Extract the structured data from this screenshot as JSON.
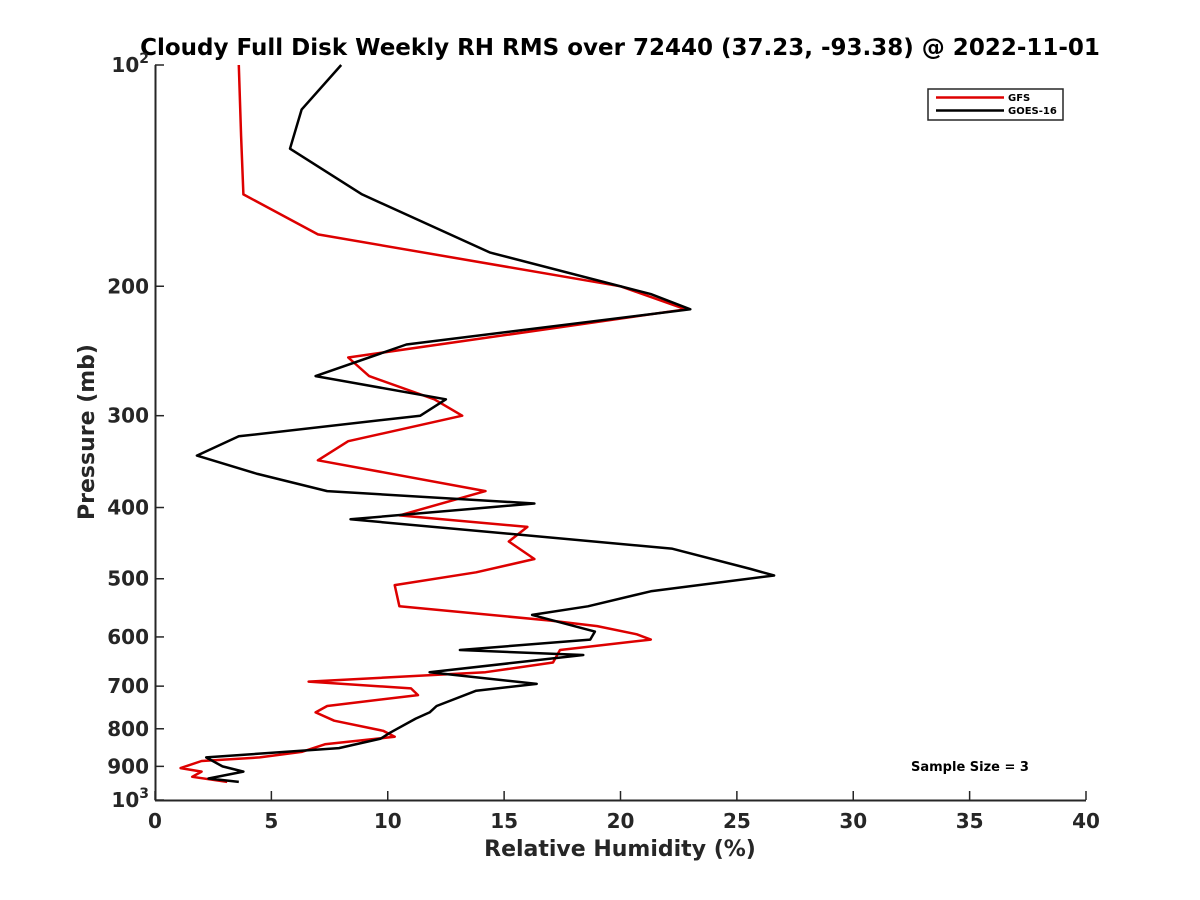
{
  "chart_data": {
    "type": "line",
    "title": "Cloudy Full Disk Weekly RH RMS over 72440 (37.23, -93.38) @ 2022-11-01",
    "xlabel": "Relative Humidity (%)",
    "ylabel": "Pressure (mb)",
    "xlim": [
      0,
      40
    ],
    "ylim": [
      100,
      1000
    ],
    "y_scale": "log",
    "y_reversed": true,
    "x_ticks": [
      "0",
      "5",
      "10",
      "15",
      "20",
      "25",
      "30",
      "35",
      "40"
    ],
    "y_ticks": [
      {
        "value": 100,
        "base": "10",
        "exp": "2"
      },
      {
        "value": 200,
        "label": "200"
      },
      {
        "value": 300,
        "label": "300"
      },
      {
        "value": 400,
        "label": "400"
      },
      {
        "value": 500,
        "label": "500"
      },
      {
        "value": 600,
        "label": "600"
      },
      {
        "value": 700,
        "label": "700"
      },
      {
        "value": 800,
        "label": "800"
      },
      {
        "value": 900,
        "label": "900"
      },
      {
        "value": 1000,
        "base": "10",
        "exp": "3"
      }
    ],
    "grid": false,
    "legend_position": "top-right",
    "annotation": "Sample Size = 3",
    "series": [
      {
        "name": "GFS",
        "color": "#dd0000",
        "points": [
          [
            3.6,
            100
          ],
          [
            3.7,
            125
          ],
          [
            3.8,
            150
          ],
          [
            7.0,
            170
          ],
          [
            20.0,
            200
          ],
          [
            22.8,
            215
          ],
          [
            8.3,
            250
          ],
          [
            9.2,
            265
          ],
          [
            12.0,
            285
          ],
          [
            13.2,
            300
          ],
          [
            8.3,
            325
          ],
          [
            7.0,
            345
          ],
          [
            14.2,
            380
          ],
          [
            10.5,
            410
          ],
          [
            16.0,
            425
          ],
          [
            15.2,
            445
          ],
          [
            16.3,
            470
          ],
          [
            13.8,
            490
          ],
          [
            10.3,
            510
          ],
          [
            10.5,
            545
          ],
          [
            17.0,
            570
          ],
          [
            19.0,
            580
          ],
          [
            20.7,
            595
          ],
          [
            21.3,
            605
          ],
          [
            17.4,
            625
          ],
          [
            17.1,
            650
          ],
          [
            14.2,
            670
          ],
          [
            6.6,
            690
          ],
          [
            11.0,
            705
          ],
          [
            11.3,
            720
          ],
          [
            7.4,
            745
          ],
          [
            6.9,
            760
          ],
          [
            7.7,
            780
          ],
          [
            9.8,
            805
          ],
          [
            10.3,
            820
          ],
          [
            7.3,
            840
          ],
          [
            6.3,
            860
          ],
          [
            4.5,
            875
          ],
          [
            2.0,
            885
          ],
          [
            1.1,
            905
          ],
          [
            2.0,
            915
          ],
          [
            1.6,
            930
          ],
          [
            3.1,
            945
          ]
        ]
      },
      {
        "name": "GOES-16",
        "color": "#000000",
        "points": [
          [
            8.0,
            100
          ],
          [
            6.3,
            115
          ],
          [
            5.8,
            130
          ],
          [
            8.9,
            150
          ],
          [
            14.4,
            180
          ],
          [
            21.3,
            205
          ],
          [
            23.0,
            215
          ],
          [
            10.8,
            240
          ],
          [
            6.9,
            265
          ],
          [
            12.5,
            285
          ],
          [
            11.4,
            300
          ],
          [
            3.6,
            320
          ],
          [
            1.8,
            340
          ],
          [
            4.4,
            360
          ],
          [
            7.4,
            380
          ],
          [
            16.3,
            395
          ],
          [
            8.4,
            415
          ],
          [
            22.2,
            455
          ],
          [
            25.6,
            485
          ],
          [
            26.6,
            495
          ],
          [
            21.3,
            520
          ],
          [
            18.6,
            545
          ],
          [
            16.2,
            560
          ],
          [
            18.9,
            590
          ],
          [
            18.7,
            605
          ],
          [
            13.1,
            625
          ],
          [
            18.4,
            635
          ],
          [
            11.8,
            670
          ],
          [
            16.4,
            695
          ],
          [
            13.8,
            710
          ],
          [
            12.1,
            745
          ],
          [
            11.8,
            760
          ],
          [
            11.2,
            775
          ],
          [
            10.1,
            810
          ],
          [
            9.7,
            825
          ],
          [
            7.9,
            850
          ],
          [
            2.2,
            875
          ],
          [
            2.9,
            900
          ],
          [
            3.8,
            915
          ],
          [
            2.3,
            935
          ],
          [
            3.6,
            945
          ]
        ]
      }
    ]
  }
}
